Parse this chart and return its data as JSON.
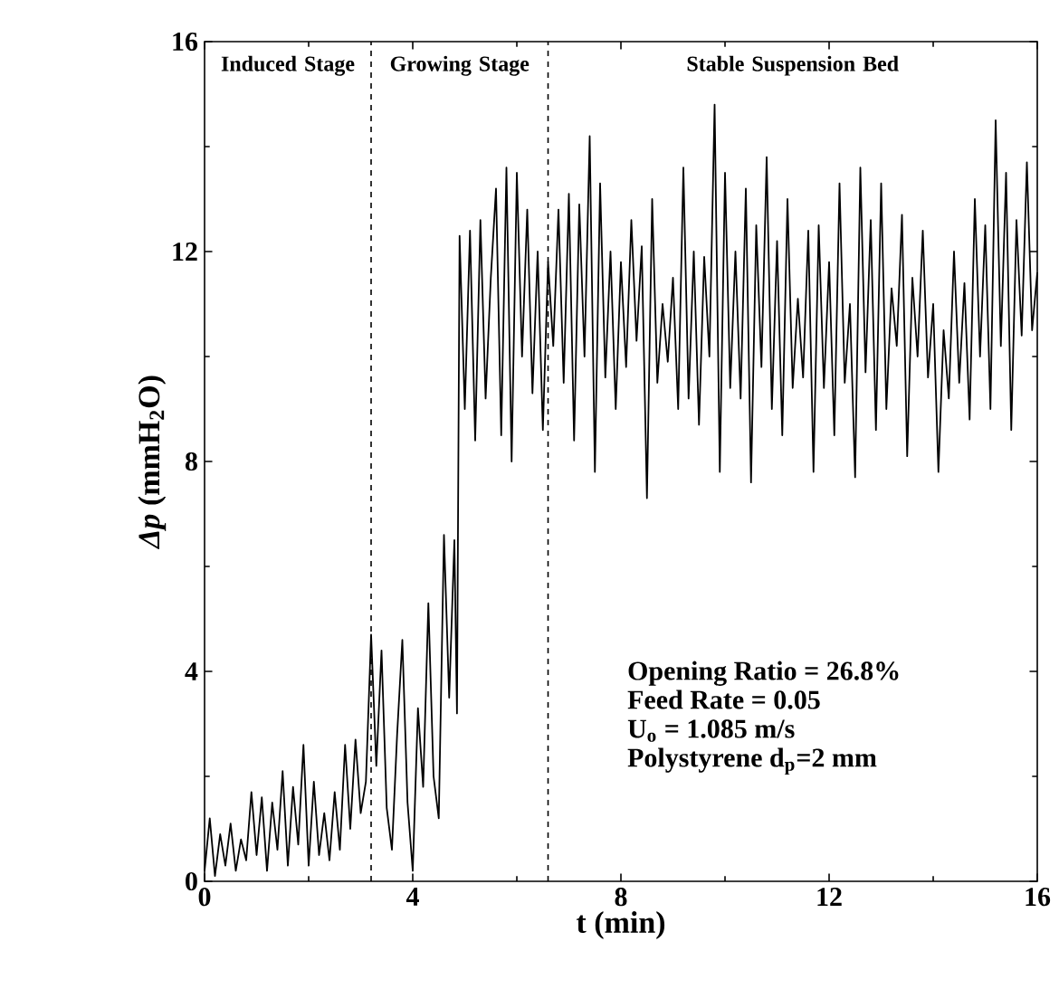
{
  "chart_data": {
    "type": "line",
    "xlabel": "t (min)",
    "ylabel": "*Δp* (mmH$_{2}$O)",
    "xlim": [
      0,
      16
    ],
    "ylim": [
      0,
      16
    ],
    "xticks": [
      0,
      4,
      8,
      12,
      16
    ],
    "yticks": [
      0,
      4,
      8,
      12,
      16
    ],
    "grid": false,
    "x": [
      0.0,
      0.1,
      0.2,
      0.3,
      0.4,
      0.5,
      0.6,
      0.7,
      0.8,
      0.9,
      1.0,
      1.1,
      1.2,
      1.3,
      1.4,
      1.5,
      1.6,
      1.7,
      1.8,
      1.9,
      2.0,
      2.1,
      2.2,
      2.3,
      2.4,
      2.5,
      2.6,
      2.7,
      2.8,
      2.9,
      3.0,
      3.1,
      3.2,
      3.3,
      3.4,
      3.5,
      3.6,
      3.7,
      3.8,
      3.9,
      4.0,
      4.1,
      4.2,
      4.3,
      4.4,
      4.5,
      4.6,
      4.7,
      4.8,
      4.85,
      4.9,
      5.0,
      5.1,
      5.2,
      5.3,
      5.4,
      5.5,
      5.6,
      5.7,
      5.8,
      5.9,
      6.0,
      6.1,
      6.2,
      6.3,
      6.4,
      6.5,
      6.6,
      6.7,
      6.8,
      6.9,
      7.0,
      7.1,
      7.2,
      7.3,
      7.4,
      7.5,
      7.6,
      7.7,
      7.8,
      7.9,
      8.0,
      8.1,
      8.2,
      8.3,
      8.4,
      8.5,
      8.6,
      8.7,
      8.8,
      8.9,
      9.0,
      9.1,
      9.2,
      9.3,
      9.4,
      9.5,
      9.6,
      9.7,
      9.8,
      9.9,
      10.0,
      10.1,
      10.2,
      10.3,
      10.4,
      10.5,
      10.6,
      10.7,
      10.8,
      10.9,
      11.0,
      11.1,
      11.2,
      11.3,
      11.4,
      11.5,
      11.6,
      11.7,
      11.8,
      11.9,
      12.0,
      12.1,
      12.2,
      12.3,
      12.4,
      12.5,
      12.6,
      12.7,
      12.8,
      12.9,
      13.0,
      13.1,
      13.2,
      13.3,
      13.4,
      13.5,
      13.6,
      13.7,
      13.8,
      13.9,
      14.0,
      14.1,
      14.2,
      14.3,
      14.4,
      14.5,
      14.6,
      14.7,
      14.8,
      14.9,
      15.0,
      15.1,
      15.2,
      15.3,
      15.4,
      15.5,
      15.6,
      15.7,
      15.8,
      15.9,
      16.0
    ],
    "series": [
      {
        "color": "#000000",
        "line_style": "solid",
        "values": [
          0.2,
          1.2,
          0.1,
          0.9,
          0.3,
          1.1,
          0.2,
          0.8,
          0.4,
          1.7,
          0.5,
          1.6,
          0.2,
          1.5,
          0.6,
          2.1,
          0.3,
          1.8,
          0.7,
          2.6,
          0.3,
          1.9,
          0.5,
          1.3,
          0.4,
          1.7,
          0.6,
          2.6,
          1.0,
          2.7,
          1.3,
          1.9,
          4.7,
          2.2,
          4.4,
          1.4,
          0.6,
          2.8,
          4.6,
          1.5,
          0.2,
          3.3,
          1.8,
          5.3,
          2.0,
          1.2,
          6.6,
          3.5,
          6.5,
          3.2,
          12.3,
          9.0,
          12.4,
          8.4,
          12.6,
          9.2,
          11.5,
          13.2,
          8.5,
          13.6,
          8.0,
          13.5,
          10.0,
          12.8,
          9.3,
          12.0,
          8.6,
          11.8,
          10.2,
          12.8,
          9.5,
          13.1,
          8.4,
          12.9,
          10.0,
          14.2,
          7.8,
          13.3,
          9.6,
          12.0,
          9.0,
          11.8,
          9.8,
          12.6,
          10.3,
          12.1,
          7.3,
          13.0,
          9.5,
          11.0,
          9.9,
          11.5,
          9.0,
          13.6,
          9.2,
          12.0,
          8.7,
          11.9,
          10.0,
          14.8,
          7.8,
          13.5,
          9.4,
          12.0,
          9.2,
          13.2,
          7.6,
          12.5,
          9.8,
          13.8,
          9.0,
          12.2,
          8.5,
          13.0,
          9.4,
          11.1,
          9.6,
          12.4,
          7.8,
          12.5,
          9.4,
          11.8,
          8.5,
          13.3,
          9.5,
          11.0,
          7.7,
          13.6,
          9.7,
          12.6,
          8.6,
          13.3,
          9.0,
          11.3,
          10.2,
          12.7,
          8.1,
          11.5,
          10.0,
          12.4,
          9.6,
          11.0,
          7.8,
          10.5,
          9.2,
          12.0,
          9.5,
          11.4,
          8.8,
          13.0,
          10.0,
          12.5,
          9.0,
          14.5,
          10.2,
          13.5,
          8.6,
          12.6,
          10.4,
          13.7,
          10.5,
          11.6
        ]
      }
    ],
    "ref_lines": [
      {
        "axis": "x",
        "value": 3.2,
        "line_style": "dashed"
      },
      {
        "axis": "x",
        "value": 6.6,
        "line_style": "dashed"
      }
    ],
    "annotations": [
      "Induced Stage",
      "Growing Stage",
      "Stable Suspension Bed",
      "Opening Ratio = 26.8%",
      "Feed Rate = **0.05**",
      "U$_{o}$ = 1.085 m/s",
      "Polystyrene d$_{p}$=2 mm"
    ]
  }
}
